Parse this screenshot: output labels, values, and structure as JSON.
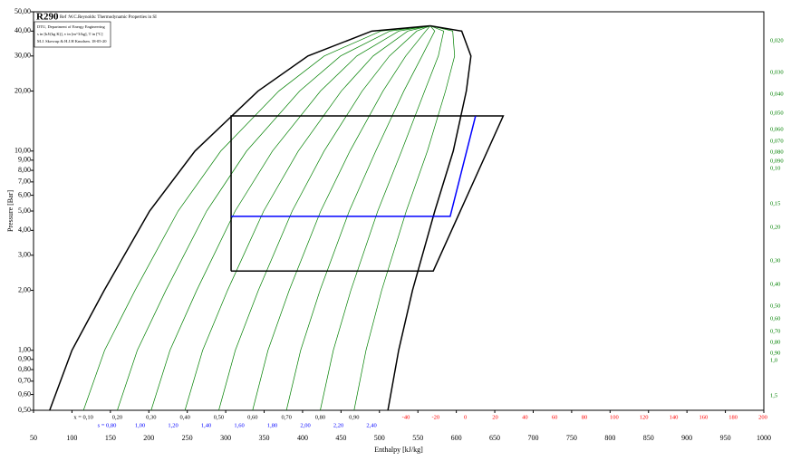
{
  "chart_data": {
    "type": "line",
    "title": "R290",
    "subtitle": "Ref :W.C.Reynolds: Thermodynamic Properties in SI",
    "info_box": [
      "DTU, Department of Energy Engineering",
      "s in [kJ/(kg K)], v in [m^3/kg], T in [ºC]",
      "M.J. Skovrup & H.J.H Knudsen. 18-05-20"
    ],
    "x_label": "Enthalpy [kJ/kg]",
    "y_label": "Pressure [Bar]",
    "xlim": [
      50,
      1000
    ],
    "ylim": [
      0.5,
      50
    ],
    "y_log": true,
    "xticks": [
      50,
      100,
      150,
      200,
      250,
      300,
      350,
      400,
      450,
      500,
      550,
      600,
      650,
      700,
      750,
      800,
      850,
      900,
      950,
      1000
    ],
    "yticks": [
      {
        "value": 0.5,
        "label": "0,50"
      },
      {
        "value": 0.6,
        "label": "0,60"
      },
      {
        "value": 0.7,
        "label": "0,70"
      },
      {
        "value": 0.8,
        "label": "0,80"
      },
      {
        "value": 0.9,
        "label": "0,90"
      },
      {
        "value": 1,
        "label": "1,00"
      },
      {
        "value": 2,
        "label": "2,00"
      },
      {
        "value": 3,
        "label": "3,00"
      },
      {
        "value": 4,
        "label": "4,00"
      },
      {
        "value": 5,
        "label": "5,00"
      },
      {
        "value": 6,
        "label": "6,00"
      },
      {
        "value": 7,
        "label": "7,00"
      },
      {
        "value": 8,
        "label": "8,00"
      },
      {
        "value": 9,
        "label": "9,00"
      },
      {
        "value": 10,
        "label": "10,00"
      },
      {
        "value": 20,
        "label": "20,00"
      },
      {
        "value": 30,
        "label": "30,00"
      },
      {
        "value": 40,
        "label": "40,00"
      },
      {
        "value": 50,
        "label": "50,00"
      }
    ],
    "series": [
      {
        "name": "Saturated liquid",
        "color": "#000000",
        "x": [
          71,
          100,
          142,
          201,
          260,
          342,
          407,
          490,
          566
        ],
        "values": [
          0.5,
          1,
          2,
          5,
          10,
          20,
          30,
          40,
          42.5
        ]
      },
      {
        "name": "Saturated vapour",
        "color": "#000000",
        "x": [
          511,
          525,
          543,
          572,
          596,
          613,
          619,
          607,
          566
        ],
        "values": [
          0.5,
          1,
          2,
          5,
          10,
          20,
          30,
          40,
          42.5
        ]
      },
      {
        "name": "Cycle",
        "color": "#000000",
        "x": [
          307,
          570,
          661,
          307,
          307
        ],
        "values": [
          2.5,
          2.5,
          15,
          15,
          2.5
        ]
      },
      {
        "name": "Intermediate",
        "color": "#0000ff",
        "x": [
          307,
          592,
          625
        ],
        "values": [
          4.7,
          4.7,
          15
        ]
      }
    ],
    "quality_labels": [
      {
        "value": 0.1,
        "label": "x = 0,10"
      },
      {
        "value": 0.2,
        "label": "0,20"
      },
      {
        "value": 0.3,
        "label": "0,30"
      },
      {
        "value": 0.4,
        "label": "0,40"
      },
      {
        "value": 0.5,
        "label": "0,50"
      },
      {
        "value": 0.6,
        "label": "0,60"
      },
      {
        "value": 0.7,
        "label": "0,70"
      },
      {
        "value": 0.8,
        "label": "0,80"
      },
      {
        "value": 0.9,
        "label": "0,90"
      }
    ],
    "entropy_labels": [
      {
        "value": 0.8,
        "label": "s = 0,80"
      },
      {
        "value": 1.0,
        "label": "1,00"
      },
      {
        "value": 1.2,
        "label": "1,20"
      },
      {
        "value": 1.4,
        "label": "1,40"
      },
      {
        "value": 1.6,
        "label": "1,60"
      },
      {
        "value": 1.8,
        "label": "1,80"
      },
      {
        "value": 2.0,
        "label": "2,00"
      },
      {
        "value": 2.2,
        "label": "2,20"
      },
      {
        "value": 2.4,
        "label": "2,40"
      }
    ],
    "temperature_labels": [
      -40,
      -20,
      0,
      20,
      40,
      60,
      80,
      100,
      120,
      140,
      160,
      180,
      200
    ],
    "volume_labels": [
      {
        "value": 0.02,
        "label": "0,020"
      },
      {
        "value": 0.03,
        "label": "0,030"
      },
      {
        "value": 0.04,
        "label": "0,040"
      },
      {
        "value": 0.05,
        "label": "0,050"
      },
      {
        "value": 0.06,
        "label": "0,060"
      },
      {
        "value": 0.07,
        "label": "0,070"
      },
      {
        "value": 0.08,
        "label": "0,080"
      },
      {
        "value": 0.09,
        "label": "0,090"
      },
      {
        "value": 0.1,
        "label": "0,10"
      },
      {
        "value": 0.15,
        "label": "0,15"
      },
      {
        "value": 0.2,
        "label": "0,20"
      },
      {
        "value": 0.3,
        "label": "0,30"
      },
      {
        "value": 0.4,
        "label": "0,40"
      },
      {
        "value": 0.5,
        "label": "0,50"
      },
      {
        "value": 0.6,
        "label": "0,60"
      },
      {
        "value": 0.7,
        "label": "0,70"
      },
      {
        "value": 0.8,
        "label": "0,80"
      },
      {
        "value": 0.9,
        "label": "0,90"
      },
      {
        "value": 1.0,
        "label": "1,0"
      },
      {
        "value": 1.5,
        "label": "1,5"
      }
    ],
    "quality_color": "#008000",
    "entropy_color": "#0000ff",
    "temperature_color": "#ff0000",
    "volume_color": "#008000"
  }
}
